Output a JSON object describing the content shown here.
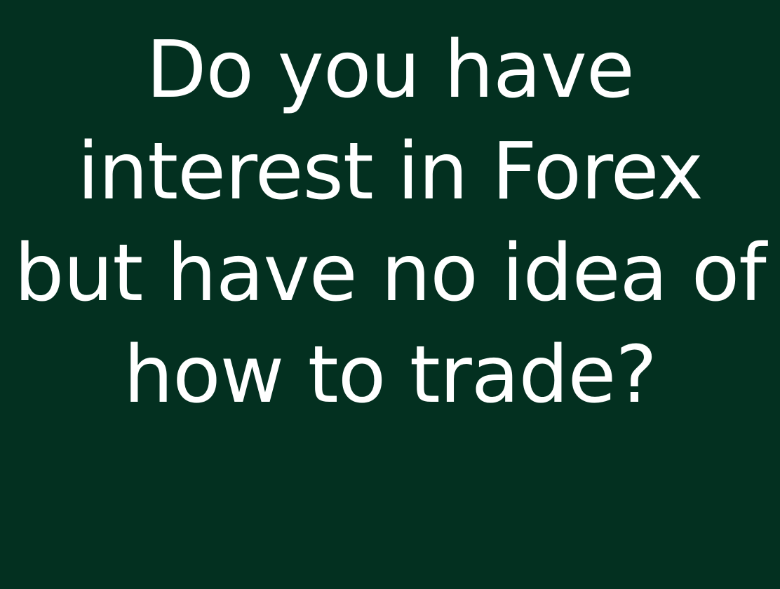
{
  "slide": {
    "background_color": "#033020",
    "text_color": "#ffffff",
    "headline_lines": [
      "Do you have",
      "interest in Forex",
      "but have no idea of",
      "how to trade?"
    ]
  }
}
